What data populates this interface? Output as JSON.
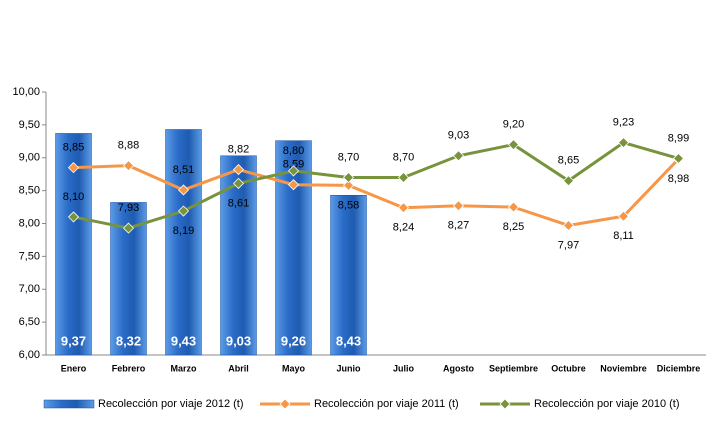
{
  "chart_data": {
    "type": "bar-line",
    "categories": [
      "Enero",
      "Febrero",
      "Marzo",
      "Abril",
      "Mayo",
      "Junio",
      "Julio",
      "Agosto",
      "Septiembre",
      "Octubre",
      "Noviembre",
      "Diciembre"
    ],
    "ylim": [
      6,
      10
    ],
    "yticks": [
      {
        "value": 6,
        "label": "6,00"
      },
      {
        "value": 6.5,
        "label": "6,50"
      },
      {
        "value": 7,
        "label": "7,00"
      },
      {
        "value": 7.5,
        "label": "7,50"
      },
      {
        "value": 8,
        "label": "8,00"
      },
      {
        "value": 8.5,
        "label": "8,50"
      },
      {
        "value": 9,
        "label": "9,00"
      },
      {
        "value": 9.5,
        "label": "9,50"
      },
      {
        "value": 10,
        "label": "10,00"
      }
    ],
    "grid": false,
    "legend": "bottom",
    "series": [
      {
        "name": "Recolección por viaje 2012 (t)",
        "type": "bar",
        "color": "#2e6fc9",
        "values": [
          9.37,
          8.32,
          9.43,
          9.03,
          9.26,
          8.43,
          null,
          null,
          null,
          null,
          null,
          null
        ],
        "value_labels": [
          "9,37",
          "8,32",
          "9,43",
          "9,03",
          "9,26",
          "8,43",
          null,
          null,
          null,
          null,
          null,
          null
        ]
      },
      {
        "name": "Recolección por viaje 2011 (t)",
        "type": "line",
        "color": "#f79646",
        "values": [
          8.85,
          8.88,
          8.51,
          8.82,
          8.59,
          8.58,
          8.24,
          8.27,
          8.25,
          7.97,
          8.11,
          8.98
        ],
        "value_labels": [
          "8,85",
          "8,88",
          "8,51",
          "8,82",
          "8,59",
          "8,58",
          "8,24",
          "8,27",
          "8,25",
          "7,97",
          "8,11",
          "8,98"
        ]
      },
      {
        "name": "Recolección por viaje 2010 (t)",
        "type": "line",
        "color": "#77933c",
        "values": [
          8.1,
          7.93,
          8.19,
          8.61,
          8.8,
          8.7,
          8.7,
          9.03,
          9.2,
          8.65,
          9.23,
          8.99
        ],
        "value_labels": [
          "8,10",
          "7,93",
          "8,19",
          "8,61",
          "8,80",
          "8,70",
          "8,70",
          "9,03",
          "9,20",
          "8,65",
          "9,23",
          "8,99"
        ]
      }
    ]
  }
}
